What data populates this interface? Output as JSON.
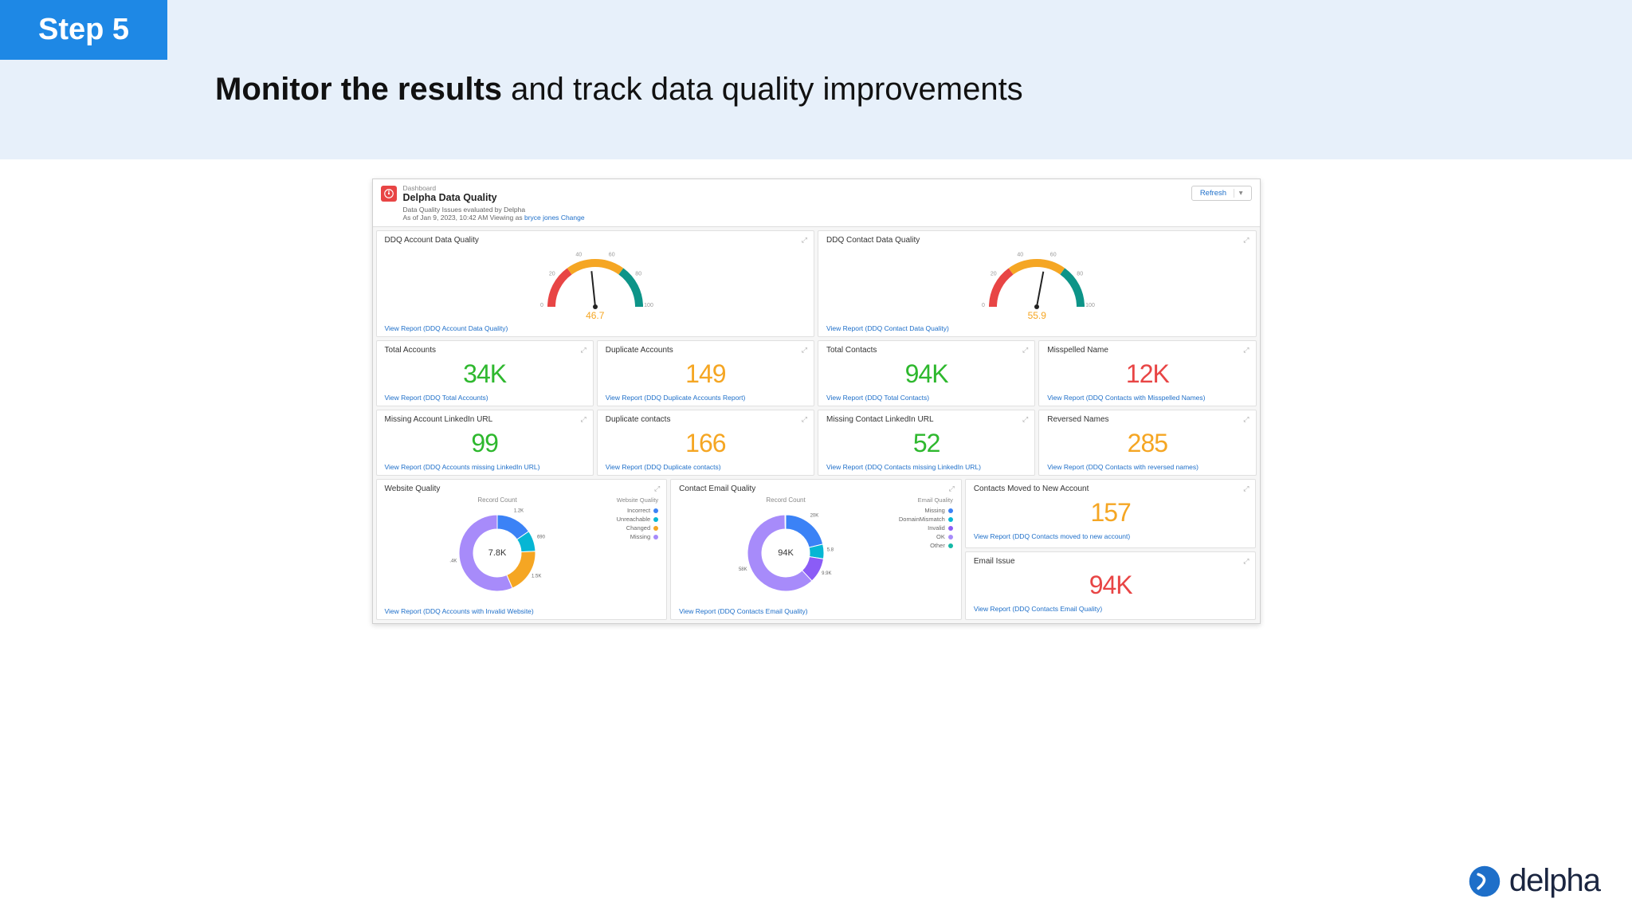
{
  "banner": {
    "step_label": "Step 5",
    "headline_bold": "Monitor the results",
    "headline_rest": " and track data quality improvements"
  },
  "header": {
    "label": "Dashboard",
    "title": "Delpha Data Quality",
    "subtitle": "Data Quality Issues evaluated by Delpha",
    "asof_prefix": "As of Jan 9, 2023, 10:42 AM Viewing as ",
    "asof_name": "bryce jones",
    "asof_change": "Change",
    "refresh": "Refresh"
  },
  "gauges": {
    "account": {
      "title": "DDQ Account Data Quality",
      "value": 46.7,
      "value_label": "46.7",
      "link": "View Report (DDQ Account Data Quality)",
      "ticks": [
        "0",
        "20",
        "40",
        "60",
        "80",
        "100"
      ],
      "segments": [
        {
          "color": "#e84545",
          "start": 0,
          "end": 30
        },
        {
          "color": "#f5a623",
          "start": 30,
          "end": 70
        },
        {
          "color": "#0d9488",
          "start": 70,
          "end": 100
        }
      ]
    },
    "contact": {
      "title": "DDQ Contact Data Quality",
      "value": 55.9,
      "value_label": "55.9",
      "link": "View Report (DDQ Contact Data Quality)",
      "ticks": [
        "0",
        "20",
        "40",
        "60",
        "80",
        "100"
      ],
      "segments": [
        {
          "color": "#e84545",
          "start": 0,
          "end": 30
        },
        {
          "color": "#f5a623",
          "start": 30,
          "end": 70
        },
        {
          "color": "#0d9488",
          "start": 70,
          "end": 100
        }
      ]
    }
  },
  "kpis_row1": [
    {
      "title": "Total Accounts",
      "value": "34K",
      "color": "green",
      "link": "View Report (DDQ Total Accounts)"
    },
    {
      "title": "Duplicate Accounts",
      "value": "149",
      "color": "orange",
      "link": "View Report (DDQ Duplicate Accounts Report)"
    },
    {
      "title": "Total Contacts",
      "value": "94K",
      "color": "green",
      "link": "View Report (DDQ Total Contacts)"
    },
    {
      "title": "Misspelled Name",
      "value": "12K",
      "color": "red",
      "link": "View Report (DDQ Contacts with Misspelled Names)"
    }
  ],
  "kpis_row2": [
    {
      "title": "Missing Account LinkedIn URL",
      "value": "99",
      "color": "green",
      "link": "View Report (DDQ Accounts missing LinkedIn URL)"
    },
    {
      "title": "Duplicate contacts",
      "value": "166",
      "color": "orange",
      "link": "View Report (DDQ Duplicate contacts)"
    },
    {
      "title": "Missing Contact LinkedIn URL",
      "value": "52",
      "color": "green",
      "link": "View Report (DDQ Contacts missing LinkedIn URL)"
    },
    {
      "title": "Reversed Names",
      "value": "285",
      "color": "orange",
      "link": "View Report (DDQ Contacts with reversed names)"
    }
  ],
  "donuts": {
    "website": {
      "title": "Website Quality",
      "count_label": "Record Count",
      "center": "7.8K",
      "legend_title": "Website Quality",
      "link": "View Report (DDQ Accounts with Invalid Website)",
      "segments": [
        {
          "label": "Incorrect",
          "color": "#3b82f6",
          "value": 1200,
          "label_text": "1.2K"
        },
        {
          "label": "Unreachable",
          "color": "#06b6d4",
          "value": 690,
          "label_text": "690"
        },
        {
          "label": "Changed",
          "color": "#f5a623",
          "value": 1500,
          "label_text": "1.5K"
        },
        {
          "label": "Missing",
          "color": "#a78bfa",
          "value": 4400,
          "label_text": "4.4K"
        }
      ]
    },
    "email": {
      "title": "Contact Email Quality",
      "count_label": "Record Count",
      "center": "94K",
      "legend_title": "Email Quality",
      "link": "View Report (DDQ Contacts Email Quality)",
      "segments": [
        {
          "label": "Missing",
          "color": "#3b82f6",
          "value": 20000,
          "label_text": "20K"
        },
        {
          "label": "DomainMismatch",
          "color": "#06b6d4",
          "value": 5800,
          "label_text": "5.8K"
        },
        {
          "label": "Invalid",
          "color": "#8b5cf6",
          "value": 9900,
          "label_text": "9.9K"
        },
        {
          "label": "OK",
          "color": "#a78bfa",
          "value": 58000,
          "label_text": "58K"
        },
        {
          "label": "Other",
          "color": "#14b8a6",
          "value": 300,
          "label_text": ""
        }
      ]
    }
  },
  "right_kpis": [
    {
      "title": "Contacts Moved to New Account",
      "value": "157",
      "color": "orange",
      "link": "View Report (DDQ Contacts moved to new account)"
    },
    {
      "title": "Email Issue",
      "value": "94K",
      "color": "red",
      "link": "View Report (DDQ Contacts Email Quality)"
    }
  ],
  "brand": "delpha"
}
